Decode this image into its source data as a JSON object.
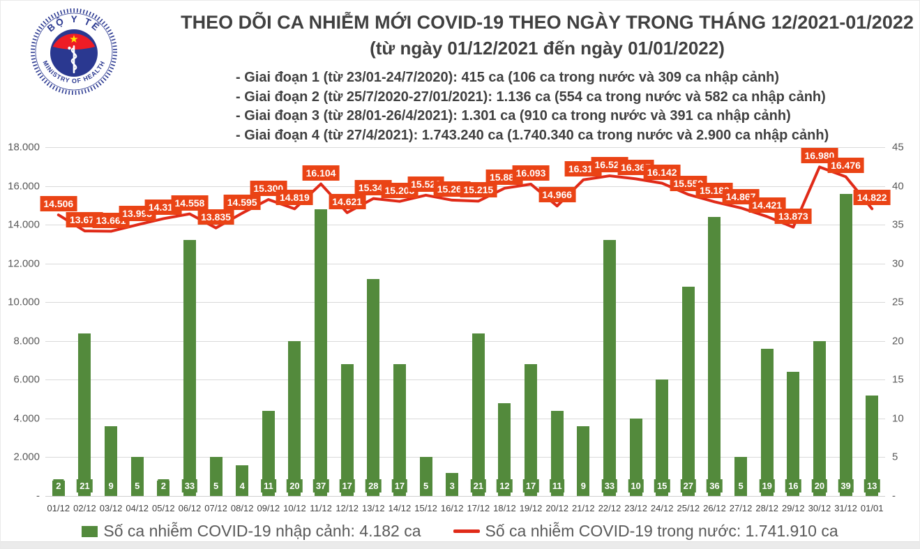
{
  "logo": {
    "top_text": "BỘ Y TẾ",
    "bottom_text": "MINISTRY OF HEALTH"
  },
  "header": {
    "title": "THEO DÕI CA NHIỄM MỚI COVID-19 THEO NGÀY TRONG THÁNG 12/2021-01/2022",
    "subtitle": "(từ ngày 01/12/2021 đến ngày 01/01/2022)"
  },
  "phases": [
    "- Giai đoạn 1 (từ 23/01-24/7/2020): 415 ca (106 ca trong nước và 309 ca nhập cảnh)",
    "- Giai đoạn 2 (từ 25/7/2020-27/01/2021): 1.136 ca (554 ca trong nước và 582 ca nhập cảnh)",
    "- Giai đoạn 3 (từ 28/01-26/4/2021): 1.301 ca (910 ca trong nước và 391 ca nhập cảnh)",
    "- Giai đoạn 4 (từ 27/4/2021): 1.743.240 ca (1.740.340 ca trong nước và 2.900 ca nhập cảnh)"
  ],
  "chart_data": {
    "type": "bar+line",
    "categories": [
      "01/12",
      "02/12",
      "03/12",
      "04/12",
      "05/12",
      "06/12",
      "07/12",
      "08/12",
      "09/12",
      "10/12",
      "11/12",
      "12/12",
      "13/12",
      "14/12",
      "15/12",
      "16/12",
      "17/12",
      "18/12",
      "19/12",
      "20/12",
      "21/12",
      "22/12",
      "23/12",
      "24/12",
      "25/12",
      "26/12",
      "27/12",
      "28/12",
      "29/12",
      "30/12",
      "31/12",
      "01/01"
    ],
    "series": [
      {
        "name": "Số ca nhiễm COVID-19 nhập cảnh",
        "type": "bar",
        "axis": "right",
        "color": "#538a3c",
        "values": [
          2,
          21,
          9,
          5,
          2,
          33,
          5,
          4,
          11,
          20,
          37,
          17,
          28,
          17,
          5,
          3,
          21,
          12,
          17,
          11,
          9,
          33,
          10,
          15,
          27,
          36,
          5,
          19,
          16,
          20,
          39,
          13
        ]
      },
      {
        "name": "Số ca nhiễm COVID-19 trong nước",
        "type": "line",
        "axis": "left",
        "color": "#e02a18",
        "label_bg": "#ea4315",
        "values": [
          14506,
          13677,
          13661,
          13993,
          14312,
          14558,
          13835,
          14595,
          15300,
          14819,
          16104,
          14621,
          15349,
          15203,
          15522,
          15267,
          15215,
          15883,
          16093,
          14966,
          16316,
          16522,
          16367,
          16142,
          15559,
          15182,
          14867,
          14421,
          13873,
          16980,
          16476,
          14822
        ],
        "labels": [
          "14.506",
          "13.677",
          "13.661",
          "13.993",
          "14.312",
          "14.558",
          "13.835",
          "14.595",
          "15.300",
          "14.819",
          "16.104",
          "14.621",
          "15.349",
          "15.203",
          "15.522",
          "15.267",
          "15.215",
          "15.883",
          "16.093",
          "14.966",
          "16.316",
          "16.522",
          "16.367",
          "16.142",
          "15.559",
          "15.182",
          "14.867",
          "14.421",
          "13.873",
          "16.980",
          "16.476",
          "14.822"
        ]
      }
    ],
    "left_axis": {
      "ticks": [
        "18.000",
        "16.000",
        "14.000",
        "12.000",
        "10.000",
        "8.000",
        "6.000",
        "4.000",
        "2.000",
        "-"
      ],
      "min": 0,
      "max": 18000
    },
    "right_axis": {
      "ticks": [
        "45",
        "40",
        "35",
        "30",
        "25",
        "20",
        "15",
        "10",
        "5",
        "-"
      ],
      "min": 0,
      "max": 45
    },
    "grid": true,
    "legend_position": "bottom"
  },
  "legend": [
    {
      "swatch": "green-bar-swatch",
      "label": "Số ca nhiễm COVID-19 nhập cảnh: 4.182 ca"
    },
    {
      "swatch": "red-line-swatch",
      "label": "Số ca nhiễm COVID-19 trong nước: 1.741.910 ca"
    }
  ],
  "colors": {
    "bar_green": "#538a3c",
    "line_red": "#e02a18",
    "label_box_red": "#ea4315",
    "grid_gray": "#d9d9d9",
    "axis_text": "#595959",
    "title_text": "#404040",
    "logo_blue": "#2a3890",
    "logo_red": "#ee1c25",
    "logo_star_yellow": "#ffe600"
  }
}
